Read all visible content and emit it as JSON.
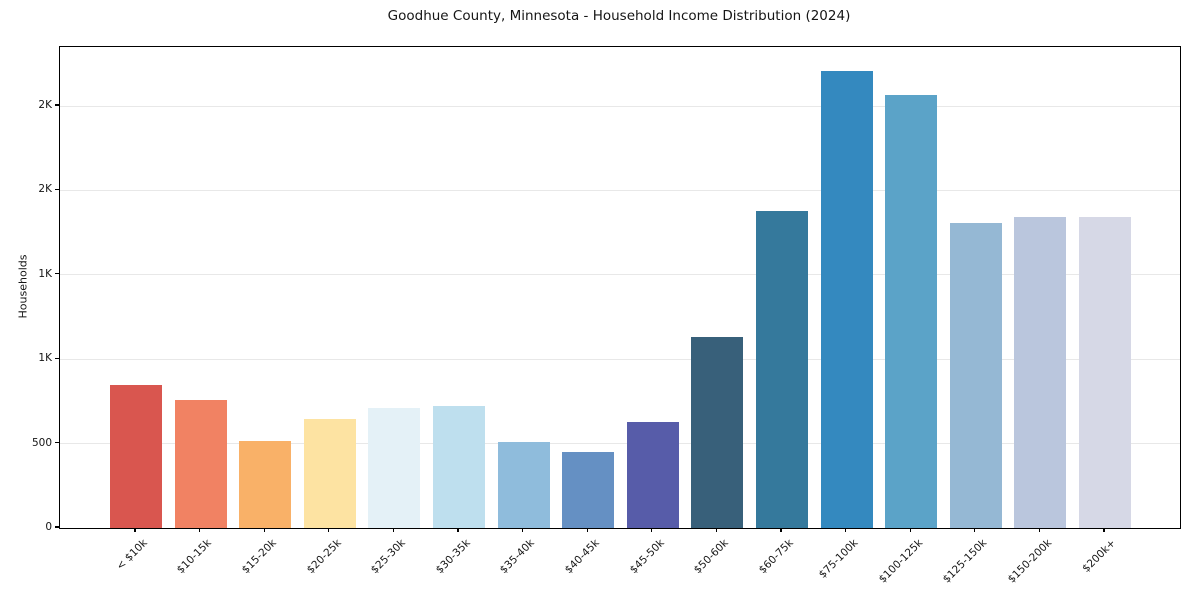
{
  "chart_data": {
    "type": "bar",
    "title": "Goodhue County, Minnesota - Household Income Distribution (2024)",
    "xlabel": "",
    "ylabel": "Households",
    "categories": [
      "< $10k",
      "$10-15k",
      "$15-20k",
      "$20-25k",
      "$25-30k",
      "$30-35k",
      "$35-40k",
      "$40-45k",
      "$45-50k",
      "$50-60k",
      "$60-75k",
      "$75-100k",
      "$100-125k",
      "$125-150k",
      "$150-200k",
      "$200k+"
    ],
    "values": [
      850,
      760,
      515,
      645,
      710,
      725,
      510,
      450,
      630,
      1130,
      1880,
      2705,
      2565,
      1810,
      1840,
      1840
    ],
    "bar_colors": [
      "#d9564f",
      "#f18263",
      "#f9b168",
      "#fde3a2",
      "#e4f1f7",
      "#bedfee",
      "#8fbcdc",
      "#6590c3",
      "#575ca9",
      "#38607a",
      "#35799c",
      "#3489bf",
      "#5ba3c8",
      "#95b8d4",
      "#bac6dd",
      "#d6d8e6"
    ],
    "ylim": [
      0,
      2850
    ],
    "yticks": [
      {
        "value": 0,
        "label": "0"
      },
      {
        "value": 500,
        "label": "500"
      },
      {
        "value": 1000,
        "label": "1K"
      },
      {
        "value": 1500,
        "label": "1K"
      },
      {
        "value": 2000,
        "label": "2K"
      },
      {
        "value": 2500,
        "label": "2K"
      }
    ],
    "grid": "horizontal",
    "legend": "none",
    "background_color": "#ffffff",
    "gridline_color": "#e8e8e8",
    "spine_color": "#000000",
    "text_color": "#151515"
  }
}
